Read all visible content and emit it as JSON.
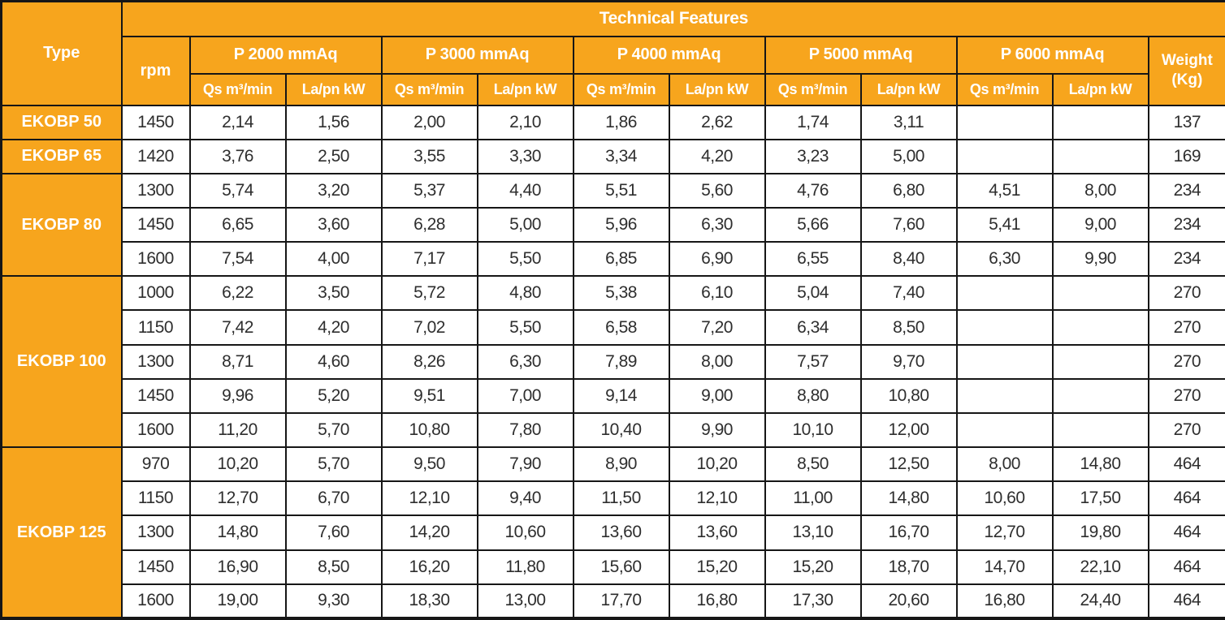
{
  "table": {
    "title": "Technical Features",
    "col_headers": {
      "type": "Type",
      "rpm": "rpm",
      "pressure_groups": [
        "P 2000 mmAq",
        "P 3000 mmAq",
        "P 4000 mmAq",
        "P 5000 mmAq",
        "P 6000 mmAq"
      ],
      "qs": "Qs m³/min",
      "la": "La/pn kW",
      "weight_line1": "Weight",
      "weight_line2": "(Kg)"
    },
    "groups": [
      {
        "type": "EKOBP 50",
        "rows": [
          {
            "rpm": "1450",
            "values": [
              "2,14",
              "1,56",
              "2,00",
              "2,10",
              "1,86",
              "2,62",
              "1,74",
              "3,11",
              "",
              ""
            ],
            "weight": "137"
          }
        ]
      },
      {
        "type": "EKOBP 65",
        "rows": [
          {
            "rpm": "1420",
            "values": [
              "3,76",
              "2,50",
              "3,55",
              "3,30",
              "3,34",
              "4,20",
              "3,23",
              "5,00",
              "",
              ""
            ],
            "weight": "169"
          }
        ]
      },
      {
        "type": "EKOBP 80",
        "rows": [
          {
            "rpm": "1300",
            "values": [
              "5,74",
              "3,20",
              "5,37",
              "4,40",
              "5,51",
              "5,60",
              "4,76",
              "6,80",
              "4,51",
              "8,00"
            ],
            "weight": "234"
          },
          {
            "rpm": "1450",
            "values": [
              "6,65",
              "3,60",
              "6,28",
              "5,00",
              "5,96",
              "6,30",
              "5,66",
              "7,60",
              "5,41",
              "9,00"
            ],
            "weight": "234"
          },
          {
            "rpm": "1600",
            "values": [
              "7,54",
              "4,00",
              "7,17",
              "5,50",
              "6,85",
              "6,90",
              "6,55",
              "8,40",
              "6,30",
              "9,90"
            ],
            "weight": "234"
          }
        ]
      },
      {
        "type": "EKOBP 100",
        "rows": [
          {
            "rpm": "1000",
            "values": [
              "6,22",
              "3,50",
              "5,72",
              "4,80",
              "5,38",
              "6,10",
              "5,04",
              "7,40",
              "",
              ""
            ],
            "weight": "270"
          },
          {
            "rpm": "1150",
            "values": [
              "7,42",
              "4,20",
              "7,02",
              "5,50",
              "6,58",
              "7,20",
              "6,34",
              "8,50",
              "",
              ""
            ],
            "weight": "270"
          },
          {
            "rpm": "1300",
            "values": [
              "8,71",
              "4,60",
              "8,26",
              "6,30",
              "7,89",
              "8,00",
              "7,57",
              "9,70",
              "",
              ""
            ],
            "weight": "270"
          },
          {
            "rpm": "1450",
            "values": [
              "9,96",
              "5,20",
              "9,51",
              "7,00",
              "9,14",
              "9,00",
              "8,80",
              "10,80",
              "",
              ""
            ],
            "weight": "270"
          },
          {
            "rpm": "1600",
            "values": [
              "11,20",
              "5,70",
              "10,80",
              "7,80",
              "10,40",
              "9,90",
              "10,10",
              "12,00",
              "",
              ""
            ],
            "weight": "270"
          }
        ]
      },
      {
        "type": "EKOBP 125",
        "rows": [
          {
            "rpm": "970",
            "values": [
              "10,20",
              "5,70",
              "9,50",
              "7,90",
              "8,90",
              "10,20",
              "8,50",
              "12,50",
              "8,00",
              "14,80"
            ],
            "weight": "464"
          },
          {
            "rpm": "1150",
            "values": [
              "12,70",
              "6,70",
              "12,10",
              "9,40",
              "11,50",
              "12,10",
              "11,00",
              "14,80",
              "10,60",
              "17,50"
            ],
            "weight": "464"
          },
          {
            "rpm": "1300",
            "values": [
              "14,80",
              "7,60",
              "14,20",
              "10,60",
              "13,60",
              "13,60",
              "13,10",
              "16,70",
              "12,70",
              "19,80"
            ],
            "weight": "464"
          },
          {
            "rpm": "1450",
            "values": [
              "16,90",
              "8,50",
              "16,20",
              "11,80",
              "15,60",
              "15,20",
              "15,20",
              "18,70",
              "14,70",
              "22,10"
            ],
            "weight": "464"
          },
          {
            "rpm": "1600",
            "values": [
              "19,00",
              "9,30",
              "18,30",
              "13,00",
              "17,70",
              "16,80",
              "17,30",
              "20,60",
              "16,80",
              "24,40"
            ],
            "weight": "464"
          }
        ]
      }
    ],
    "colors": {
      "header_orange": "#F7A51D",
      "border_black": "#161616",
      "header_text": "#ffffff",
      "data_text": "#2e2e2e"
    }
  }
}
